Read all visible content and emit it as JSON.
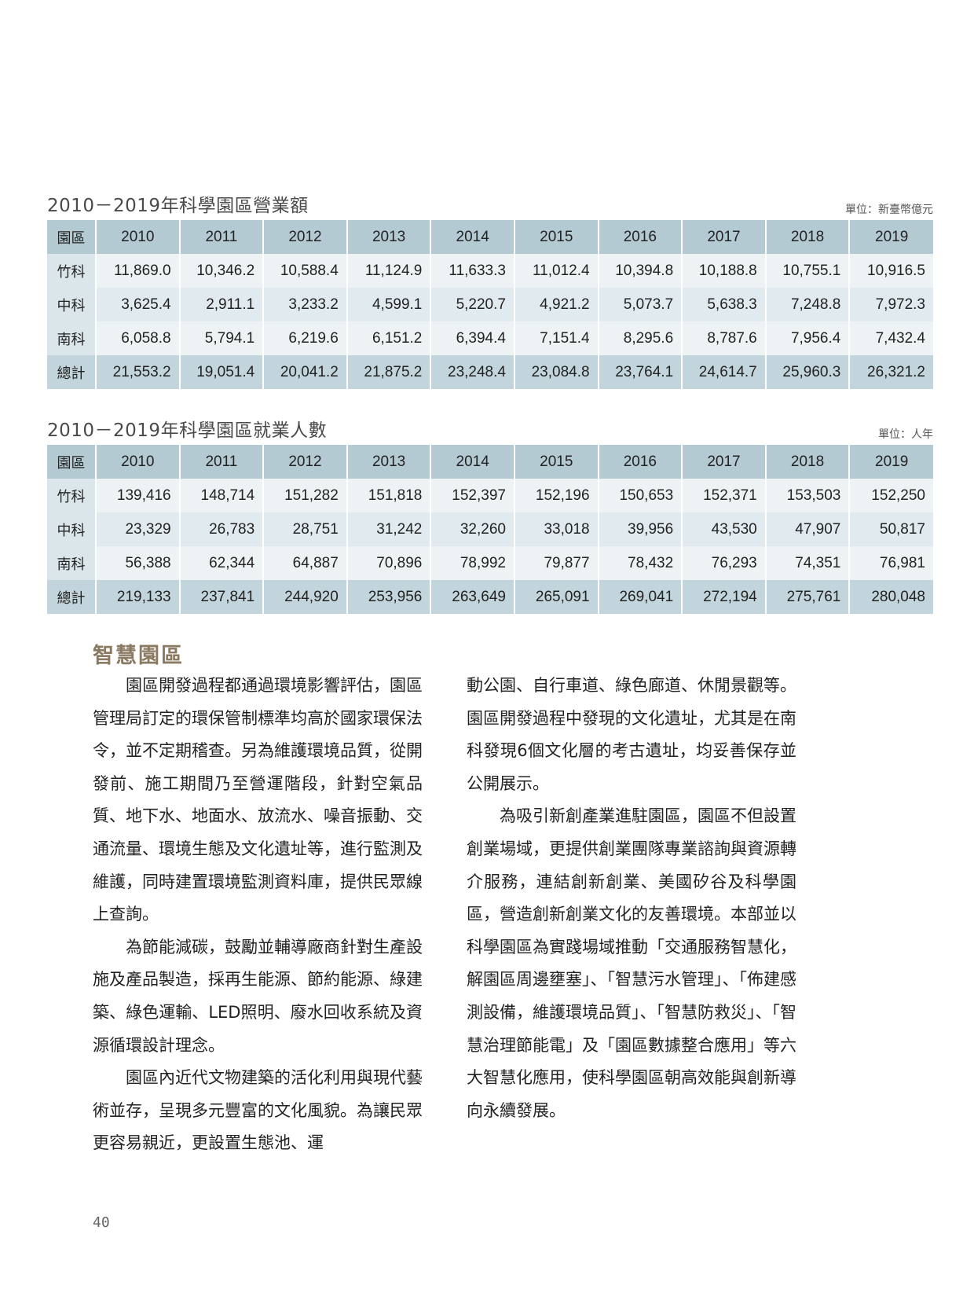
{
  "revenue_table": {
    "title": "2010－2019年科學園區營業額",
    "unit": "單位：新臺幣億元",
    "header": [
      "園區",
      "2010",
      "2011",
      "2012",
      "2013",
      "2014",
      "2015",
      "2016",
      "2017",
      "2018",
      "2019"
    ],
    "rows": [
      {
        "park": "竹科",
        "values": [
          "11,869.0",
          "10,346.2",
          "10,588.4",
          "11,124.9",
          "11,633.3",
          "11,012.4",
          "10,394.8",
          "10,188.8",
          "10,755.1",
          "10,916.5"
        ]
      },
      {
        "park": "中科",
        "values": [
          "3,625.4",
          "2,911.1",
          "3,233.2",
          "4,599.1",
          "5,220.7",
          "4,921.2",
          "5,073.7",
          "5,638.3",
          "7,248.8",
          "7,972.3"
        ]
      },
      {
        "park": "南科",
        "values": [
          "6,058.8",
          "5,794.1",
          "6,219.6",
          "6,151.2",
          "6,394.4",
          "7,151.4",
          "8,295.6",
          "8,787.6",
          "7,956.4",
          "7,432.4"
        ]
      },
      {
        "park": "總計",
        "values": [
          "21,553.2",
          "19,051.4",
          "20,041.2",
          "21,875.2",
          "23,248.4",
          "23,084.8",
          "23,764.1",
          "24,614.7",
          "25,960.3",
          "26,321.2"
        ]
      }
    ]
  },
  "employment_table": {
    "title": "2010－2019年科學園區就業人數",
    "unit": "單位：人年",
    "header": [
      "園區",
      "2010",
      "2011",
      "2012",
      "2013",
      "2014",
      "2015",
      "2016",
      "2017",
      "2018",
      "2019"
    ],
    "rows": [
      {
        "park": "竹科",
        "values": [
          "139,416",
          "148,714",
          "151,282",
          "151,818",
          "152,397",
          "152,196",
          "150,653",
          "152,371",
          "153,503",
          "152,250"
        ]
      },
      {
        "park": "中科",
        "values": [
          "23,329",
          "26,783",
          "28,751",
          "31,242",
          "32,260",
          "33,018",
          "39,956",
          "43,530",
          "47,907",
          "50,817"
        ]
      },
      {
        "park": "南科",
        "values": [
          "56,388",
          "62,344",
          "64,887",
          "70,896",
          "78,992",
          "79,877",
          "78,432",
          "76,293",
          "74,351",
          "76,981"
        ]
      },
      {
        "park": "總計",
        "values": [
          "219,133",
          "237,841",
          "244,920",
          "253,956",
          "263,649",
          "265,091",
          "269,041",
          "272,194",
          "275,761",
          "280,048"
        ]
      }
    ]
  },
  "section": {
    "title": "智慧園區",
    "left_paragraphs": [
      {
        "indent": true,
        "text": "園區開發過程都通過環境影響評估，園區管理局訂定的環保管制標準均高於國家環保法令，並不定期稽查。另為維護環境品質，從開發前、施工期間乃至營運階段，針對空氣品質、地下水、地面水、放流水、噪音振動、交通流量、環境生態及文化遺址等，進行監測及維護，同時建置環境監測資料庫，提供民眾線上查詢。"
      },
      {
        "indent": true,
        "text": "為節能減碳，鼓勵並輔導廠商針對生產設施及產品製造，採再生能源、節約能源、綠建築、綠色運輸、LED照明、廢水回收系統及資源循環設計理念。"
      },
      {
        "indent": true,
        "text": "園區內近代文物建築的活化利用與現代藝術並存，呈現多元豐富的文化風貌。為讓民眾更容易親近，更設置生態池、運"
      }
    ],
    "right_paragraphs": [
      {
        "indent": false,
        "text": "動公園、自行車道、綠色廊道、休閒景觀等。園區開發過程中發現的文化遺址，尤其是在南科發現6個文化層的考古遺址，均妥善保存並公開展示。"
      },
      {
        "indent": true,
        "text": "為吸引新創產業進駐園區，園區不但設置創業場域，更提供創業團隊專業諮詢與資源轉介服務，連結創新創業、美國矽谷及科學園區，營造創新創業文化的友善環境。本部並以科學園區為實踐場域推動「交通服務智慧化，解園區周邊壅塞」、「智慧污水管理」、「佈建感測設備，維護環境品質」、「智慧防救災」、「智慧治理節能電」及「園區數據整合應用」等六大智慧化應用，使科學園區朝高效能與創新導向永續發展。"
      }
    ]
  },
  "page_number": "40"
}
